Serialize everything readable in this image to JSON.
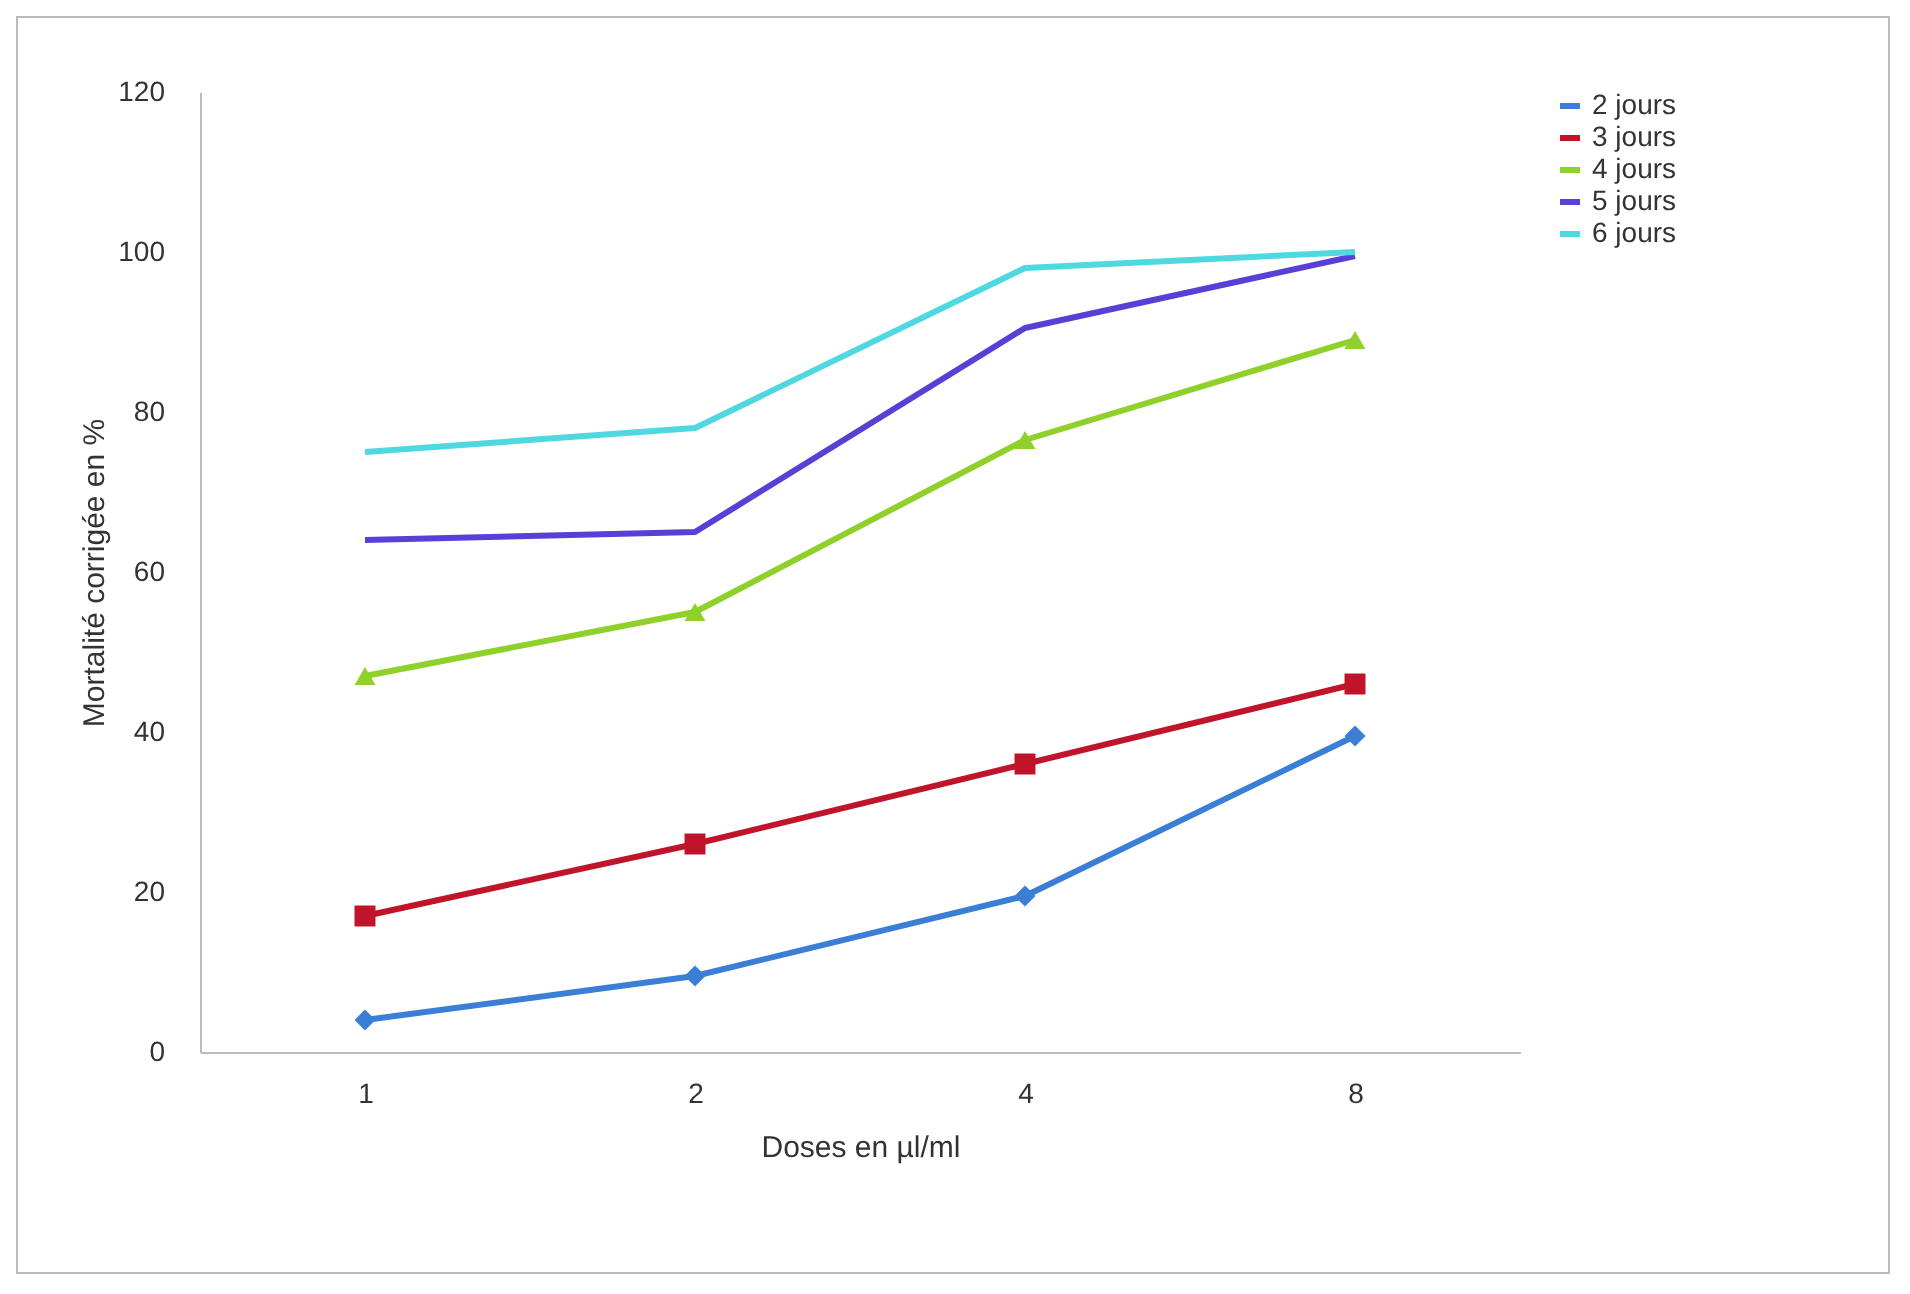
{
  "chart_data": {
    "type": "line",
    "xlabel": "Doses  en µl/ml",
    "ylabel": "Mortalité corrigée en  %",
    "categories": [
      "1",
      "2",
      "4",
      "8"
    ],
    "ylim": [
      0,
      120
    ],
    "yticks": [
      0,
      20,
      40,
      60,
      80,
      100,
      120
    ],
    "legend": "right",
    "series": [
      {
        "name": "2 jours",
        "color": "#3a7fd5",
        "marker": "diamond",
        "values": [
          4,
          9.5,
          19.5,
          39.5
        ]
      },
      {
        "name": "3 jours",
        "color": "#c0142a",
        "marker": "square",
        "values": [
          17,
          26,
          36,
          46
        ]
      },
      {
        "name": "4 jours",
        "color": "#8fd12a",
        "marker": "triangle",
        "values": [
          47,
          55,
          76.5,
          89
        ]
      },
      {
        "name": "5 jours",
        "color": "#5a3fd6",
        "marker": "none",
        "values": [
          64,
          65,
          90.5,
          99.5
        ]
      },
      {
        "name": "6 jours",
        "color": "#4fd8e0",
        "marker": "none",
        "values": [
          75,
          78,
          98,
          100
        ]
      }
    ]
  }
}
